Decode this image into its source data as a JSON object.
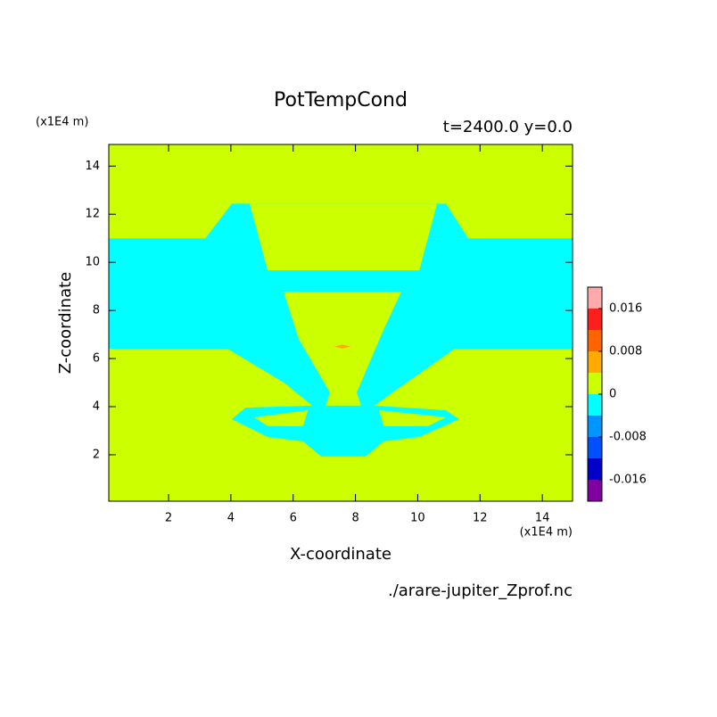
{
  "chart_data": {
    "type": "contour",
    "title": "PotTempCond",
    "subtitle": "t=2400.0 y=0.0",
    "xlabel": "X-coordinate",
    "ylabel": "Z-coordinate",
    "xunit": "(x1E4 m)",
    "yunit": "(x1E4 m)",
    "source": "./arare-jupiter_Zprof.nc",
    "xlim": [
      0.08,
      14.97
    ],
    "ylim": [
      0.07,
      14.9
    ],
    "xticks": [
      2,
      4,
      6,
      8,
      10,
      12,
      14
    ],
    "yticks": [
      2,
      4,
      6,
      8,
      10,
      12,
      14
    ],
    "levels": [
      -0.02,
      -0.016,
      -0.012,
      -0.008,
      -0.004,
      0,
      0.004,
      0.008,
      0.012,
      0.016,
      0.02
    ],
    "colors": [
      "#8000a0",
      "#0000c8",
      "#0050ff",
      "#0096ff",
      "#00ffff",
      "#ccff00",
      "#ffaa00",
      "#ff6400",
      "#ff1e1e",
      "#ffaaaa"
    ],
    "colorbar_ticks": [
      -0.016,
      -0.008,
      0,
      0.008,
      0.016
    ],
    "regions": [
      {
        "range": [
          0,
          0.004
        ],
        "polygon": [
          [
            0.08,
            0.07
          ],
          [
            14.97,
            0.07
          ],
          [
            14.97,
            14.9
          ],
          [
            0.08,
            14.9
          ]
        ]
      },
      {
        "range": [
          -0.004,
          0
        ],
        "polygon": [
          [
            0.08,
            6.41
          ],
          [
            14.97,
            6.41
          ],
          [
            14.97,
            11.0
          ],
          [
            0.08,
            11.0
          ]
        ]
      },
      {
        "range": [
          -0.004,
          0
        ],
        "polygon": [
          [
            3.18,
            11.0
          ],
          [
            4.03,
            12.44
          ],
          [
            10.9,
            12.44
          ],
          [
            11.62,
            11.0
          ]
        ]
      },
      {
        "range": [
          -0.004,
          0
        ],
        "polygon": [
          [
            3.89,
            6.41
          ],
          [
            11.19,
            6.41
          ],
          [
            9.19,
            4.59
          ],
          [
            8.61,
            4.04
          ],
          [
            10.9,
            3.85
          ],
          [
            11.33,
            3.48
          ],
          [
            10.05,
            2.74
          ],
          [
            8.9,
            2.56
          ],
          [
            8.33,
            1.93
          ],
          [
            6.9,
            1.93
          ],
          [
            6.32,
            2.56
          ],
          [
            5.18,
            2.74
          ],
          [
            4.03,
            3.48
          ],
          [
            4.47,
            3.96
          ],
          [
            6.61,
            4.04
          ],
          [
            5.75,
            4.96
          ]
        ]
      },
      {
        "range": [
          0,
          0.004
        ],
        "polygon": [
          [
            4.6,
            12.44
          ],
          [
            10.62,
            12.44
          ],
          [
            10.05,
            9.67
          ],
          [
            5.18,
            9.67
          ]
        ]
      },
      {
        "range": [
          0,
          0.004
        ],
        "polygon": [
          [
            5.69,
            8.78
          ],
          [
            9.47,
            8.78
          ],
          [
            8.9,
            7.19
          ],
          [
            8.04,
            4.59
          ],
          [
            8.18,
            4.04
          ],
          [
            7.04,
            4.04
          ],
          [
            7.18,
            4.59
          ],
          [
            6.18,
            6.81
          ]
        ]
      },
      {
        "range": [
          0,
          0.004
        ],
        "polygon": [
          [
            4.75,
            3.56
          ],
          [
            6.47,
            3.85
          ],
          [
            6.32,
            3.19
          ],
          [
            5.18,
            3.19
          ]
        ]
      },
      {
        "range": [
          0,
          0.004
        ],
        "polygon": [
          [
            8.76,
            3.85
          ],
          [
            10.9,
            3.56
          ],
          [
            10.33,
            3.19
          ],
          [
            8.9,
            3.19
          ]
        ]
      },
      {
        "range": [
          0.004,
          0.008
        ],
        "polygon": [
          [
            7.3,
            6.5
          ],
          [
            7.58,
            6.58
          ],
          [
            7.86,
            6.5
          ],
          [
            7.58,
            6.42
          ]
        ]
      }
    ]
  }
}
